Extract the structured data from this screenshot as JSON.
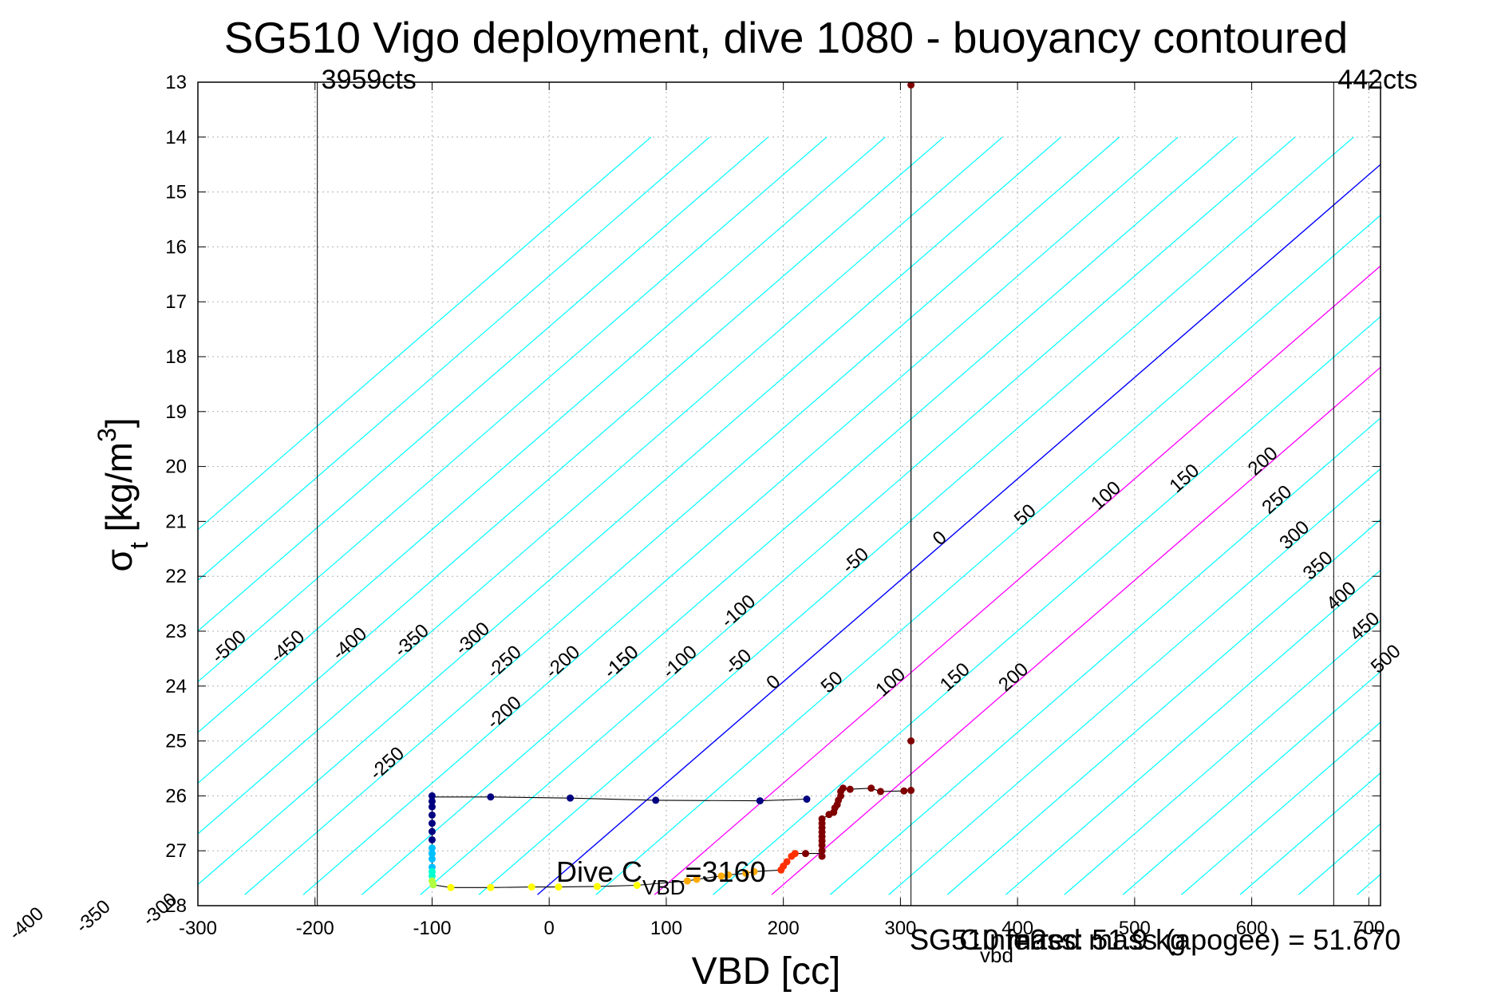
{
  "chart_data": {
    "type": "scatter",
    "title": "SG510 Vigo deployment, dive 1080 - buoyancy contoured",
    "xlabel": "VBD [cc]",
    "ylabel": {
      "symbol": "σ",
      "subscript": "t",
      "unit": " [kg/m",
      "superscript": "3",
      "close": "]"
    },
    "xlim": [
      -300,
      710
    ],
    "ylim": [
      13,
      28
    ],
    "y_reversed": true,
    "grid": "on (dotted)",
    "x_ticks": [
      "-300",
      "-200",
      "-100",
      "0",
      "100",
      "200",
      "300",
      "400",
      "500",
      "600",
      "700"
    ],
    "y_ticks": [
      "13",
      "14",
      "15",
      "16",
      "17",
      "18",
      "19",
      "20",
      "21",
      "22",
      "23",
      "24",
      "25",
      "26",
      "27",
      "28"
    ],
    "vertical_lines": [
      {
        "x": -198,
        "label": "3959cts"
      },
      {
        "x": 309,
        "label": ""
      },
      {
        "x": 670,
        "label": "442cts"
      }
    ],
    "contour_zero": {
      "x": [
        -10,
        737
      ],
      "y": [
        27.8,
        14.0
      ]
    },
    "contour_spacing_cc": 50,
    "contour_colors": {
      "default": "#00ffff",
      "zero": "#0000ff",
      "positive_highlight": "#ff00ff"
    },
    "contour_highlight_levels": [
      100,
      200
    ],
    "contour_labels": {
      "top": [
        "-500",
        "-450",
        "-400",
        "-350",
        "-300",
        "-250",
        "-200",
        "-150",
        "-100",
        "-50",
        "0",
        "50",
        "100",
        "150",
        "200"
      ],
      "bottom": [
        "-500",
        "-450",
        "-400",
        "-350",
        "-300",
        "-250",
        "-200",
        "-150",
        "-100",
        "-50",
        "0",
        "50",
        "100",
        "150",
        "200"
      ],
      "right": [
        "250",
        "300",
        "350",
        "400",
        "450",
        "500"
      ]
    },
    "annotations": {
      "dive_c_vbd": {
        "prefix": "Dive C",
        "sub": "VBD",
        "suffix": "=3160"
      },
      "sg_c_vbd": {
        "prefix": "SG C",
        "sub": "vbd",
        "suffix": "=?"
      },
      "inferred_mass": "Inferred mass (apogee) = 51.670",
      "sg510_mass": "SG510 mass: 51.9 kg"
    },
    "series": [
      {
        "marker_color": "#000080",
        "x": [
          -100,
          -100,
          -100,
          -100,
          -100,
          -100,
          -100,
          -50,
          18,
          91,
          180,
          220
        ],
        "y": [
          26.0,
          26.1,
          26.2,
          26.35,
          26.5,
          26.65,
          26.8,
          26.02,
          26.04,
          26.08,
          26.09,
          26.06
        ]
      },
      {
        "marker_color": "#00bfff",
        "x": [
          -100,
          -100,
          -100,
          -100
        ],
        "y": [
          26.95,
          27.05,
          27.15,
          27.3
        ]
      },
      {
        "marker_color": "#00ffd0",
        "x": [
          -100,
          -100
        ],
        "y": [
          27.38,
          27.46
        ]
      },
      {
        "marker_color": "#b0ff40",
        "x": [
          -100,
          -99
        ],
        "y": [
          27.55,
          27.62
        ]
      },
      {
        "marker_color": "#ffff00",
        "x": [
          -84,
          -50,
          -15,
          8,
          41,
          75
        ],
        "y": [
          27.67,
          27.67,
          27.66,
          27.66,
          27.65,
          27.63
        ]
      },
      {
        "marker_color": "#ffaa00",
        "x": [
          118,
          126,
          147,
          153,
          168,
          175
        ],
        "y": [
          27.55,
          27.52,
          27.46,
          27.44,
          27.41,
          27.38
        ]
      },
      {
        "marker_color": "#ff3000",
        "x": [
          198,
          200,
          203,
          207,
          210
        ],
        "y": [
          27.35,
          27.28,
          27.2,
          27.1,
          27.05
        ]
      },
      {
        "marker_color": "#800000",
        "x": [
          219,
          233,
          233,
          233,
          233,
          233,
          233,
          233,
          233,
          233,
          239,
          243,
          244,
          246,
          247,
          249,
          249,
          251,
          257,
          275,
          283,
          303,
          309,
          309,
          309
        ],
        "y": [
          27.05,
          27.1,
          27.0,
          26.9,
          26.82,
          26.74,
          26.66,
          26.58,
          26.5,
          26.42,
          26.34,
          26.3,
          26.22,
          26.16,
          26.08,
          26.0,
          25.92,
          25.86,
          25.88,
          25.86,
          25.92,
          25.91,
          25.9,
          25.0,
          13.05
        ]
      }
    ],
    "profile_line": {
      "x": [
        309,
        309,
        303,
        283,
        275,
        257,
        251,
        249,
        249,
        247,
        246,
        244,
        243,
        239,
        233,
        233,
        233,
        233,
        233,
        233,
        233,
        233,
        219,
        210,
        207,
        203,
        200,
        198,
        175,
        168,
        153,
        147,
        126,
        118,
        75,
        41,
        8,
        -15,
        -50,
        -84,
        -99,
        -100,
        -100,
        -100,
        -100,
        -100,
        -100,
        -100,
        -100,
        -100,
        -50,
        18,
        91,
        180,
        220
      ],
      "y": [
        13.05,
        25.9,
        25.91,
        25.92,
        25.86,
        25.88,
        25.86,
        25.92,
        26.0,
        26.08,
        26.16,
        26.22,
        26.3,
        26.34,
        26.42,
        26.58,
        26.74,
        26.9,
        27.0,
        27.1,
        27.1,
        27.05,
        27.05,
        27.05,
        27.1,
        27.2,
        27.28,
        27.35,
        27.38,
        27.41,
        27.44,
        27.46,
        27.52,
        27.55,
        27.63,
        27.65,
        27.66,
        27.66,
        27.67,
        27.67,
        27.62,
        27.55,
        27.3,
        27.0,
        26.8,
        26.5,
        26.2,
        26.0,
        26.0,
        26.02,
        26.02,
        26.04,
        26.08,
        26.09,
        26.06
      ]
    }
  }
}
